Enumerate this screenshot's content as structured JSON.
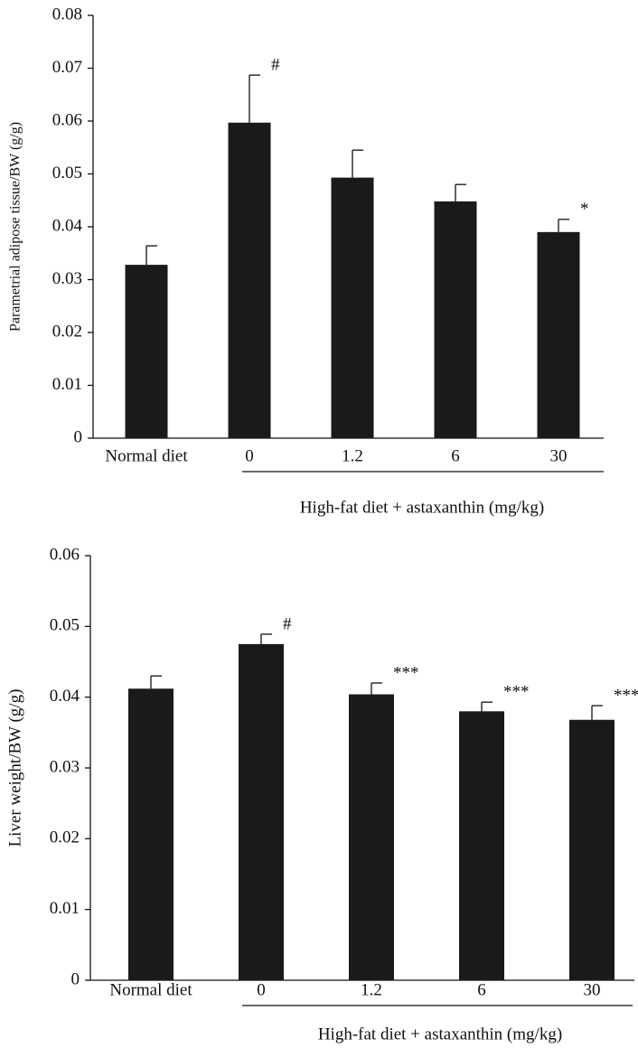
{
  "chart_data": [
    {
      "type": "bar",
      "y_label": "Parametrial adipose tissue/BW (g/g)",
      "x_label": "High-fat diet + astaxanthin (mg/kg)",
      "categories": [
        "Normal diet",
        "0",
        "1.2",
        "6",
        "30"
      ],
      "values": [
        0.0328,
        0.0597,
        0.0493,
        0.0448,
        0.039
      ],
      "errors": [
        0.0036,
        0.009,
        0.0052,
        0.0032,
        0.0024
      ],
      "annotations": [
        null,
        "#",
        null,
        null,
        "*"
      ],
      "color": "#1a1a1a",
      "ylim": [
        0,
        0.08
      ],
      "yticks": [
        0,
        0.01,
        0.02,
        0.03,
        0.04,
        0.05,
        0.06,
        0.07,
        0.08
      ]
    },
    {
      "type": "bar",
      "y_label": "Liver weight/BW (g/g)",
      "x_label": "High-fat diet + astaxanthin (mg/kg)",
      "categories": [
        "Normal diet",
        "0",
        "1.2",
        "6",
        "30"
      ],
      "values": [
        0.0412,
        0.0475,
        0.0404,
        0.038,
        0.0368
      ],
      "errors": [
        0.0018,
        0.0014,
        0.0016,
        0.0013,
        0.002
      ],
      "annotations": [
        null,
        "#",
        "***",
        "***",
        "***"
      ],
      "color": "#1a1a1a",
      "ylim": [
        0,
        0.06
      ],
      "yticks": [
        0,
        0.01,
        0.02,
        0.03,
        0.04,
        0.05,
        0.06
      ]
    }
  ]
}
